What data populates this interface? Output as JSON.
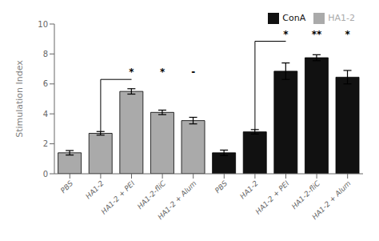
{
  "chart_data": {
    "type": "bar",
    "categories": [
      "PBS",
      "HA1-2",
      "HA1-2 + PEI",
      "HA1-2-fliC",
      "HA1-2 + Alum",
      "PBS",
      "HA1-2",
      "HA1-2 + PEI",
      "HA1-2-fliC",
      "HA1-2 + Alum"
    ],
    "series": [
      {
        "name": "HA1-2",
        "color": "#aaaaaa",
        "values": [
          1.4,
          2.7,
          5.5,
          4.1,
          3.55,
          null,
          null,
          null,
          null,
          null
        ],
        "errors": [
          0.15,
          0.12,
          0.18,
          0.15,
          0.22,
          null,
          null,
          null,
          null,
          null
        ]
      },
      {
        "name": "ConA",
        "color": "#111111",
        "values": [
          null,
          null,
          null,
          null,
          null,
          1.4,
          2.8,
          6.85,
          7.75,
          6.45
        ],
        "errors": [
          null,
          null,
          null,
          null,
          null,
          0.18,
          0.15,
          0.55,
          0.2,
          0.45
        ]
      }
    ],
    "y_label": "Stimulation Index",
    "ylim": [
      0,
      10
    ],
    "yticks": [
      0,
      2,
      4,
      6,
      8,
      10
    ],
    "legend": "upper right",
    "brackets": [
      {
        "from": 1,
        "to": 2,
        "y": 6.3
      },
      {
        "from": 6,
        "to": 7,
        "y": 8.85
      }
    ],
    "annotations": [
      {
        "text": "*",
        "category": 2,
        "y": 6.3
      },
      {
        "text": "*",
        "category": 3,
        "y": 6.3
      },
      {
        "text": "-",
        "category": 4,
        "y": 6.3
      },
      {
        "text": "*",
        "category": 7,
        "y": 8.85
      },
      {
        "text": "**",
        "category": 8,
        "y": 8.85
      },
      {
        "text": "*",
        "category": 9,
        "y": 8.85
      }
    ]
  }
}
